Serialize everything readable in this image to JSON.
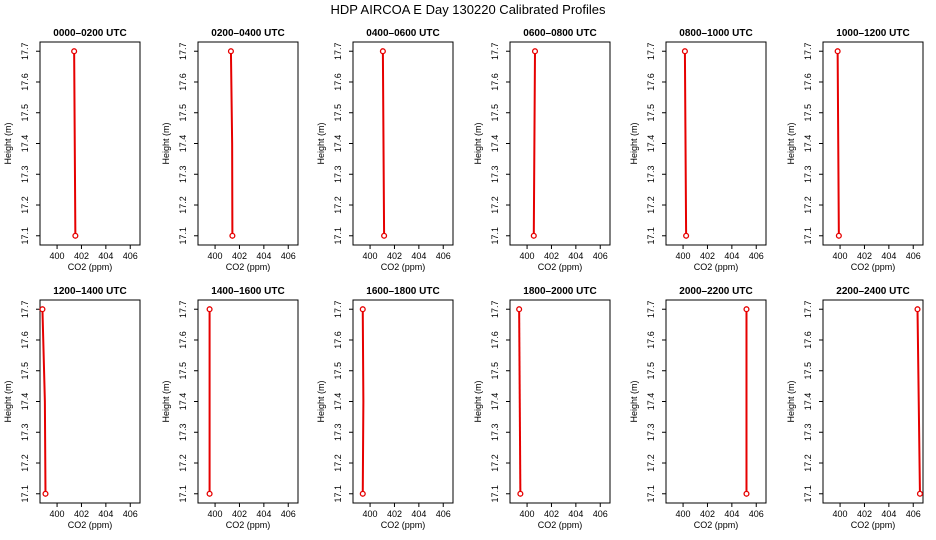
{
  "title": "HDP AIRCOA E  Day 130220  Calibrated Profiles",
  "colors": {
    "profile": "#e60000",
    "axes": "#000000",
    "background": "#ffffff"
  },
  "chart_data": {
    "type": "line",
    "xlabel": "CO2 (ppm)",
    "ylabel": "Height (m)",
    "xlim": [
      398.6,
      406.8
    ],
    "ylim": [
      17.07,
      17.73
    ],
    "xticks": [
      400,
      402,
      404,
      406
    ],
    "xtick_labels": [
      "400",
      "402",
      "404",
      "406"
    ],
    "yticks": [
      17.1,
      17.2,
      17.3,
      17.4,
      17.5,
      17.6,
      17.7
    ],
    "ytick_labels": [
      "17.1",
      "17.2",
      "17.3",
      "17.4",
      "17.5",
      "17.6",
      "17.7"
    ],
    "grid": false,
    "panels": [
      {
        "title": "0000–0200 UTC",
        "x": [
          401.4,
          401.45,
          401.5
        ],
        "y": [
          17.7,
          17.4,
          17.1
        ]
      },
      {
        "title": "0200–0400 UTC",
        "x": [
          401.3,
          401.4,
          401.42
        ],
        "y": [
          17.7,
          17.4,
          17.1
        ]
      },
      {
        "title": "0400–0600 UTC",
        "x": [
          401.05,
          401.1,
          401.15
        ],
        "y": [
          17.7,
          17.4,
          17.1
        ]
      },
      {
        "title": "0600–0800 UTC",
        "x": [
          400.65,
          400.6,
          400.55
        ],
        "y": [
          17.7,
          17.4,
          17.1
        ]
      },
      {
        "title": "0800–1000 UTC",
        "x": [
          400.15,
          400.2,
          400.25
        ],
        "y": [
          17.7,
          17.4,
          17.1
        ]
      },
      {
        "title": "1000–1200 UTC",
        "x": [
          399.8,
          399.85,
          399.9
        ],
        "y": [
          17.7,
          17.4,
          17.1
        ]
      },
      {
        "title": "1200–1400 UTC",
        "x": [
          398.8,
          399.0,
          399.05
        ],
        "y": [
          17.7,
          17.4,
          17.1
        ]
      },
      {
        "title": "1400–1600 UTC",
        "x": [
          399.55,
          399.55,
          399.55
        ],
        "y": [
          17.7,
          17.4,
          17.1
        ]
      },
      {
        "title": "1600–1800 UTC",
        "x": [
          399.4,
          399.45,
          399.4
        ],
        "y": [
          17.7,
          17.4,
          17.1
        ]
      },
      {
        "title": "1800–2000 UTC",
        "x": [
          399.35,
          399.4,
          399.45
        ],
        "y": [
          17.7,
          17.4,
          17.1
        ]
      },
      {
        "title": "2000–2200 UTC",
        "x": [
          405.2,
          405.2,
          405.2
        ],
        "y": [
          17.7,
          17.4,
          17.1
        ]
      },
      {
        "title": "2200–2400 UTC",
        "x": [
          406.35,
          406.45,
          406.55
        ],
        "y": [
          17.7,
          17.4,
          17.1
        ]
      }
    ]
  }
}
